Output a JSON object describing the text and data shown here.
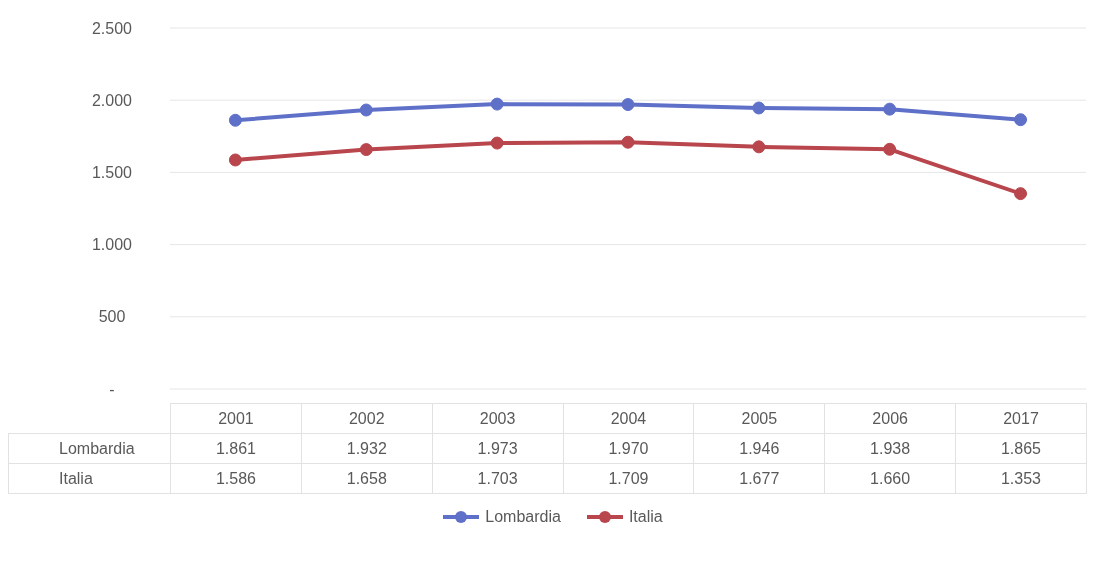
{
  "chart_data": {
    "type": "line",
    "categories": [
      "2001",
      "2002",
      "2003",
      "2004",
      "2005",
      "2006",
      "2017"
    ],
    "ylim": [
      0,
      2500
    ],
    "yticks": [
      {
        "value": 0,
        "label": "-"
      },
      500,
      {
        "value": 1000,
        "label": "1.000"
      },
      {
        "value": 1500,
        "label": "1.500"
      },
      {
        "value": 2000,
        "label": "2.000"
      },
      {
        "value": 2500,
        "label": "2.500"
      }
    ],
    "grid": "y",
    "legend": "bottom",
    "marker": "circle",
    "line_style": "solid",
    "series": [
      {
        "name": "Lombardia",
        "color": "#5f70c9",
        "values": [
          1861,
          1932,
          1973,
          1970,
          1946,
          1938,
          1865
        ],
        "value_labels": [
          "1.861",
          "1.932",
          "1.973",
          "1.970",
          "1.946",
          "1.938",
          "1.865"
        ]
      },
      {
        "name": "Italia",
        "color": "#b8464c",
        "values": [
          1586,
          1658,
          1703,
          1709,
          1677,
          1660,
          1353
        ],
        "value_labels": [
          "1.586",
          "1.658",
          "1.703",
          "1.709",
          "1.677",
          "1.660",
          "1.353"
        ]
      }
    ]
  }
}
